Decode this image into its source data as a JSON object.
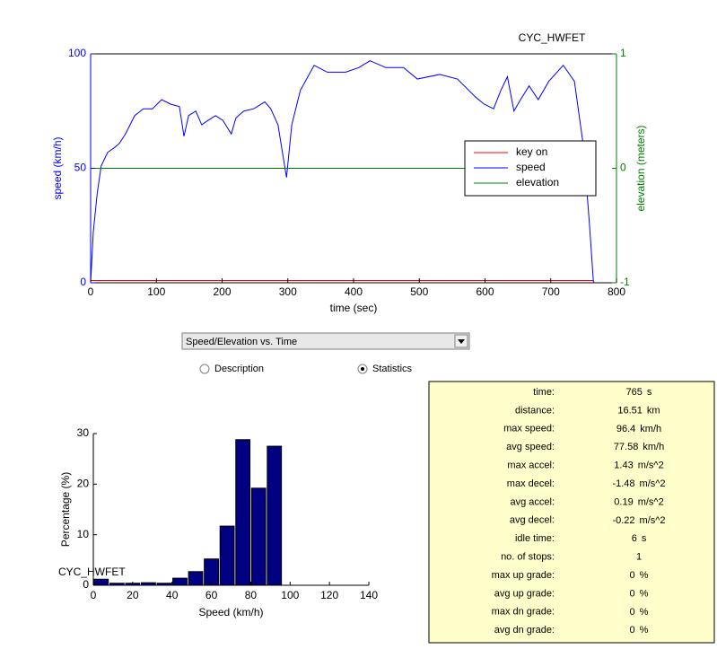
{
  "chart_data": [
    {
      "type": "line",
      "title": "CYC_HWFET",
      "xlabel": "time (sec)",
      "ylabel": "speed (km/h)",
      "y2label": "elevation (meters)",
      "xlim": [
        0,
        800
      ],
      "xticks": [
        0,
        100,
        200,
        300,
        400,
        500,
        600,
        700,
        800
      ],
      "ylim": [
        0,
        100
      ],
      "yticks": [
        0,
        50,
        100
      ],
      "y2lim": [
        -1,
        1
      ],
      "y2ticks": [
        -1,
        0,
        1
      ],
      "legend_position": "right",
      "series": [
        {
          "name": "key on",
          "color": "#ff0000",
          "x": [
            0,
            765
          ],
          "values": [
            1,
            1
          ]
        },
        {
          "name": "speed",
          "color": "#0000ff",
          "x": [
            0,
            4,
            10,
            16,
            26,
            36,
            44,
            53,
            67,
            80,
            94,
            108,
            122,
            135,
            142,
            149,
            160,
            169,
            179,
            190,
            201,
            214,
            221,
            233,
            248,
            265,
            274,
            285,
            298,
            306,
            319,
            340,
            360,
            388,
            408,
            425,
            449,
            476,
            497,
            531,
            558,
            586,
            599,
            613,
            624,
            634,
            644,
            654,
            667,
            681,
            697,
            719,
            736,
            750,
            759,
            765
          ],
          "values": [
            0,
            22,
            39,
            51,
            57,
            59,
            61,
            65,
            73,
            76,
            76,
            80,
            78,
            77,
            64,
            73,
            75,
            69,
            71,
            73,
            71,
            65,
            72,
            75,
            76,
            79,
            76,
            69,
            46,
            69,
            84,
            95,
            92,
            92,
            94,
            97,
            94,
            94,
            89,
            91,
            89,
            81,
            78,
            76,
            84,
            90,
            75,
            80,
            86,
            80,
            88,
            95,
            88,
            59,
            25,
            0
          ]
        },
        {
          "name": "elevation",
          "color": "#008000",
          "axis": "y2",
          "x": [
            0,
            765
          ],
          "values": [
            0,
            0
          ]
        }
      ]
    },
    {
      "type": "histogram",
      "annotation": "CYC_HWFET",
      "xlabel": "Speed (km/h)",
      "ylabel": "Percentage (%)",
      "color": "#000080",
      "bins": [
        0,
        8,
        16,
        24,
        32,
        40,
        48,
        56,
        64,
        72,
        80,
        88,
        96
      ],
      "values": [
        1.2,
        0.4,
        0.4,
        0.5,
        0.4,
        1.4,
        2.7,
        5.2,
        11.7,
        28.8,
        19.2,
        27.5
      ],
      "xlim": [
        0,
        140
      ],
      "xticks": [
        0,
        20,
        40,
        60,
        80,
        100,
        120,
        140
      ],
      "ylim": [
        0,
        30
      ],
      "yticks": [
        0,
        10,
        20,
        30
      ]
    }
  ],
  "controls": {
    "dropdown": "Speed/Elevation vs. Time",
    "radios": [
      {
        "label": "Description",
        "selected": false
      },
      {
        "label": "Statistics",
        "selected": true
      }
    ]
  },
  "statistics": [
    {
      "label": "time:",
      "value": 765,
      "unit": "s"
    },
    {
      "label": "distance:",
      "value": 16.51,
      "unit": "km"
    },
    {
      "label": "max speed:",
      "value": 96.4,
      "unit": "km/h"
    },
    {
      "label": "avg speed:",
      "value": 77.58,
      "unit": "km/h"
    },
    {
      "label": "max accel:",
      "value": 1.43,
      "unit": "m/s^2"
    },
    {
      "label": "max decel:",
      "value": -1.48,
      "unit": "m/s^2"
    },
    {
      "label": "avg accel:",
      "value": 0.19,
      "unit": "m/s^2"
    },
    {
      "label": "avg decel:",
      "value": -0.22,
      "unit": "m/s^2"
    },
    {
      "label": "idle time:",
      "value": 6,
      "unit": "s"
    },
    {
      "label": "no. of stops:",
      "value": 1
    },
    {
      "label": "max up grade:",
      "value": 0,
      "unit": "%"
    },
    {
      "label": "avg up grade:",
      "value": 0,
      "unit": "%"
    },
    {
      "label": "max dn grade:",
      "value": 0,
      "unit": "%"
    },
    {
      "label": "avg dn grade:",
      "value": 0,
      "unit": "%"
    }
  ]
}
